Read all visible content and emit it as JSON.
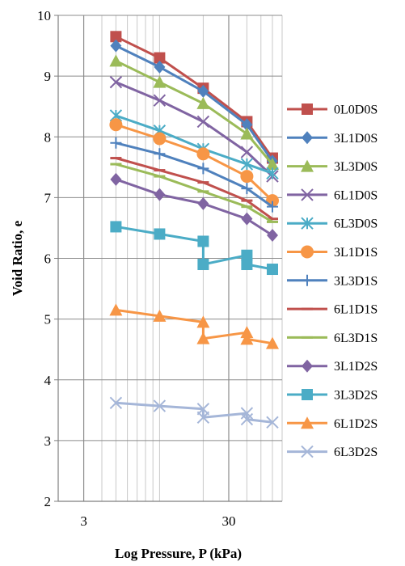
{
  "chart_data": {
    "type": "line",
    "xlabel": "Log Pressure, P (kPa)",
    "ylabel": "Void Ratio, e",
    "x_scale": "log",
    "xlim": [
      2,
      70
    ],
    "ylim": [
      2,
      10
    ],
    "x_tick_labels": [
      "3",
      "30"
    ],
    "x_tick_values": [
      3,
      30
    ],
    "y_ticks": [
      2,
      3,
      4,
      5,
      6,
      7,
      8,
      9,
      10
    ],
    "grid": "major and minor vertical, major horizontal",
    "legend_position": "right",
    "series": [
      {
        "name": "0L0D0S",
        "color": "#c0504d",
        "marker": "square",
        "x": [
          5,
          10,
          20,
          40,
          60
        ],
        "y": [
          9.65,
          9.3,
          8.8,
          8.25,
          7.65
        ]
      },
      {
        "name": "3L1D0S",
        "color": "#4f81bd",
        "marker": "diamond",
        "x": [
          5,
          10,
          20,
          40,
          60
        ],
        "y": [
          9.5,
          9.15,
          8.75,
          8.2,
          7.6
        ]
      },
      {
        "name": "3L3D0S",
        "color": "#9bbb59",
        "marker": "triangle",
        "x": [
          5,
          10,
          20,
          40,
          60
        ],
        "y": [
          9.25,
          8.9,
          8.55,
          8.05,
          7.55
        ]
      },
      {
        "name": "6L1D0S",
        "color": "#8064a2",
        "marker": "x",
        "x": [
          5,
          10,
          20,
          40,
          60
        ],
        "y": [
          8.9,
          8.6,
          8.25,
          7.75,
          7.35
        ]
      },
      {
        "name": "6L3D0S",
        "color": "#4bacc6",
        "marker": "star",
        "x": [
          5,
          10,
          20,
          40,
          60
        ],
        "y": [
          8.35,
          8.1,
          7.8,
          7.55,
          7.4
        ]
      },
      {
        "name": "3L1D1S",
        "color": "#f79646",
        "marker": "circle",
        "x": [
          5,
          10,
          20,
          40,
          60
        ],
        "y": [
          8.2,
          7.97,
          7.72,
          7.35,
          6.95
        ]
      },
      {
        "name": "3L3D1S",
        "color": "#4f81bd",
        "marker": "plus",
        "x": [
          5,
          10,
          20,
          40,
          60
        ],
        "y": [
          7.9,
          7.72,
          7.48,
          7.15,
          6.85
        ]
      },
      {
        "name": "6L1D1S",
        "color": "#c0504d",
        "marker": "dash",
        "x": [
          5,
          10,
          20,
          40,
          60
        ],
        "y": [
          7.65,
          7.45,
          7.25,
          6.95,
          6.65
        ]
      },
      {
        "name": "6L3D1S",
        "color": "#9bbb59",
        "marker": "dash",
        "x": [
          5,
          10,
          20,
          40,
          60
        ],
        "y": [
          7.55,
          7.35,
          7.1,
          6.85,
          6.6
        ]
      },
      {
        "name": "3L1D2S",
        "color": "#8064a2",
        "marker": "diamond",
        "x": [
          5,
          10,
          20,
          40,
          60
        ],
        "y": [
          7.3,
          7.05,
          6.9,
          6.65,
          6.38
        ]
      },
      {
        "name": "3L3D2S",
        "color": "#4bacc6",
        "marker": "square",
        "x": [
          5,
          10,
          20,
          20,
          40,
          40,
          60
        ],
        "y": [
          6.52,
          6.4,
          6.28,
          5.9,
          6.05,
          5.9,
          5.82
        ]
      },
      {
        "name": "6L1D2S",
        "color": "#f79646",
        "marker": "triangle",
        "x": [
          5,
          10,
          20,
          20,
          40,
          40,
          60
        ],
        "y": [
          5.15,
          5.05,
          4.95,
          4.68,
          4.78,
          4.67,
          4.6
        ]
      },
      {
        "name": "6L3D2S",
        "color": "#a5b6d8",
        "marker": "x",
        "x": [
          5,
          10,
          20,
          20,
          40,
          40,
          60
        ],
        "y": [
          3.62,
          3.57,
          3.52,
          3.38,
          3.45,
          3.35,
          3.3
        ]
      }
    ]
  }
}
